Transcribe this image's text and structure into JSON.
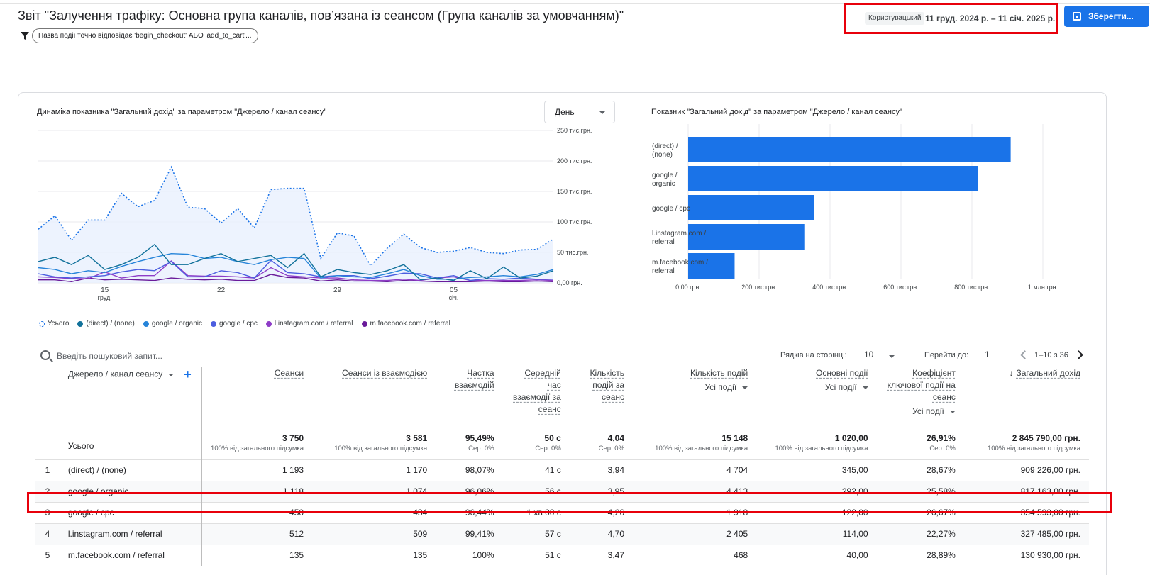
{
  "header": {
    "title": "Звіт \"Залучення трафіку: Основна група каналів, пов’язана із сеансом (Група каналів за умовчанням)\"",
    "filter_chip": "Назва події точно відповідає 'begin_checkout' АБО 'add_to_cart'...",
    "date_type": "Користувацький",
    "date_range": "11 груд. 2024 р. – 11 січ. 2025 р.",
    "save_label": "Зберегти..."
  },
  "line_chart": {
    "title": "Динаміка показника \"Загальний дохід\" за параметром \"Джерело / канал сеансу\"",
    "granularity": "День",
    "y_ticks": [
      "250 тис.грн.",
      "200 тис.грн.",
      "150 тис.грн.",
      "100 тис.грн.",
      "50 тис.грн.",
      "0,00 грн."
    ],
    "x_ticks": [
      {
        "day": "15",
        "month": "груд."
      },
      {
        "day": "22",
        "month": ""
      },
      {
        "day": "29",
        "month": ""
      },
      {
        "day": "05",
        "month": "січ."
      }
    ],
    "legend": [
      "Усього",
      "(direct) / (none)",
      "google / organic",
      "google / cpc",
      "l.instagram.com / referral",
      "m.facebook.com / referral"
    ],
    "colors": [
      "#1a73e8",
      "#12729b",
      "#2684d9",
      "#4c5ee0",
      "#8e3cc7",
      "#6a1b9a"
    ]
  },
  "bar_chart": {
    "title": "Показник \"Загальний дохід\" за параметром \"Джерело / канал сеансу\"",
    "x_ticks": [
      "0,00 грн.",
      "200 тис.грн.",
      "400 тис.грн.",
      "600 тис.грн.",
      "800 тис.грн.",
      "1 млн грн."
    ],
    "bar_color": "#1a73e8"
  },
  "chart_data": [
    {
      "type": "line",
      "title": "Динаміка показника \"Загальний дохід\" за параметром \"Джерело / канал сеансу\"",
      "x": [
        "11.12",
        "12.12",
        "13.12",
        "14.12",
        "15.12",
        "16.12",
        "17.12",
        "18.12",
        "19.12",
        "20.12",
        "21.12",
        "22.12",
        "23.12",
        "24.12",
        "25.12",
        "26.12",
        "27.12",
        "28.12",
        "29.12",
        "30.12",
        "31.12",
        "01.01",
        "02.01",
        "03.01",
        "04.01",
        "05.01",
        "06.01",
        "07.01",
        "08.01",
        "09.01",
        "10.01",
        "11.01"
      ],
      "ylim": [
        0,
        250000
      ],
      "series": [
        {
          "name": "Усього",
          "values": [
            88000,
            110000,
            70000,
            103000,
            103000,
            147000,
            125000,
            135000,
            190000,
            124000,
            122000,
            98000,
            122000,
            90000,
            153000,
            155000,
            155000,
            40000,
            82000,
            77000,
            28000,
            57000,
            80000,
            58000,
            50000,
            52000,
            58000,
            50000,
            48000,
            54000,
            55000,
            72000
          ]
        },
        {
          "name": "(direct) / (none)",
          "values": [
            35000,
            42000,
            30000,
            45000,
            22000,
            30000,
            42000,
            63000,
            30000,
            30000,
            40000,
            48000,
            35000,
            40000,
            45000,
            25000,
            48000,
            10000,
            22000,
            17000,
            14000,
            20000,
            30000,
            5000,
            8000,
            4000,
            20000,
            7000,
            26000,
            8000,
            11000,
            20000
          ]
        },
        {
          "name": "google / organic",
          "values": [
            25000,
            22000,
            15000,
            20000,
            17000,
            27000,
            35000,
            42000,
            48000,
            47000,
            40000,
            42000,
            35000,
            30000,
            38000,
            42000,
            40000,
            8000,
            12000,
            10000,
            9000,
            15000,
            22000,
            12000,
            6000,
            6000,
            9000,
            10000,
            12000,
            10000,
            14000,
            22000
          ]
        },
        {
          "name": "google / cpc",
          "values": [
            15000,
            10000,
            8000,
            10000,
            12000,
            18000,
            22000,
            20000,
            35000,
            10000,
            10000,
            20000,
            17000,
            8000,
            37000,
            17000,
            15000,
            10000,
            12000,
            12000,
            7000,
            11000,
            16000,
            15000,
            8000,
            12000,
            4000,
            7000,
            6000,
            8000,
            6000,
            6000
          ]
        },
        {
          "name": "l.instagram.com / referral",
          "values": [
            10000,
            9000,
            7000,
            7000,
            18000,
            8000,
            12000,
            12000,
            36000,
            12000,
            11000,
            11000,
            10000,
            8000,
            25000,
            12000,
            10000,
            8000,
            8000,
            5000,
            4000,
            4000,
            6000,
            4000,
            8000,
            10000,
            4000,
            4000,
            4000,
            4000,
            5000,
            4000
          ]
        },
        {
          "name": "m.facebook.com / referral",
          "values": [
            5000,
            5000,
            2000,
            8000,
            5000,
            6000,
            5000,
            4000,
            8000,
            6000,
            5000,
            6000,
            4000,
            4000,
            14000,
            9000,
            8000,
            3000,
            5000,
            3000,
            3000,
            2000,
            4000,
            3000,
            2000,
            2000,
            2000,
            3000,
            2000,
            2000,
            3000,
            2000
          ]
        }
      ]
    },
    {
      "type": "bar",
      "title": "Показник \"Загальний дохід\" за параметром \"Джерело / канал сеансу\"",
      "categories": [
        "(direct) / (none)",
        "google / organic",
        "google / cpc",
        "l.instagram.com / referral",
        "m.facebook.com / referral"
      ],
      "values": [
        909226,
        817163,
        354593,
        327485,
        130930
      ],
      "xlim": [
        0,
        1000000
      ]
    }
  ],
  "table": {
    "search_placeholder": "Введіть пошуковий запит...",
    "rows_per_page_label": "Рядків на сторінці:",
    "rows_per_page": "10",
    "goto_label": "Перейти до:",
    "goto_value": "1",
    "page_info": "1–10 з 36",
    "dimension_header": "Джерело / канал сеансу",
    "columns": [
      {
        "label": "Сеанси",
        "sub": ""
      },
      {
        "label": "Сеанси із взаємодією",
        "sub": ""
      },
      {
        "label": "Частка взаємодій",
        "sub": ""
      },
      {
        "label": "Середній час взаємодії за сеанс",
        "sub": ""
      },
      {
        "label": "Кількість подій за сеанс",
        "sub": ""
      },
      {
        "label": "Кількість подій",
        "sub": "Усі події"
      },
      {
        "label": "Основні події",
        "sub": "Усі події"
      },
      {
        "label": "Коефіцієнт ключової події на сеанс",
        "sub": "Усі події"
      },
      {
        "label": "Загальний дохід",
        "sub": "",
        "sorted": "↓"
      }
    ],
    "totals": {
      "label": "Усього",
      "values": [
        "3 750",
        "3 581",
        "95,49%",
        "50 с",
        "4,04",
        "15 148",
        "1 020,00",
        "26,91%",
        "2 845 790,00 грн."
      ],
      "subs": [
        "100% від загального підсумка",
        "100% від загального підсумка",
        "Сер. 0%",
        "Сер. 0%",
        "Сер. 0%",
        "100% від загального підсумка",
        "100% від загального підсумка",
        "Сер. 0%",
        "100% від загального підсумка"
      ]
    },
    "rows": [
      {
        "index": "1",
        "dimension": "(direct) / (none)",
        "values": [
          "1 193",
          "1 170",
          "98,07%",
          "41 с",
          "3,94",
          "4 704",
          "345,00",
          "28,67%",
          "909 226,00 грн."
        ]
      },
      {
        "index": "2",
        "dimension": "google / organic",
        "values": [
          "1 118",
          "1 074",
          "96,06%",
          "56 с",
          "3,95",
          "4 413",
          "292,00",
          "25,58%",
          "817 163,00 грн."
        ]
      },
      {
        "index": "3",
        "dimension": "google / cpc",
        "values": [
          "450",
          "434",
          "96,44%",
          "1 хв 00 с",
          "4,26",
          "1 918",
          "122,00",
          "26,67%",
          "354 593,00 грн."
        ]
      },
      {
        "index": "4",
        "dimension": "l.instagram.com / referral",
        "values": [
          "512",
          "509",
          "99,41%",
          "57 с",
          "4,70",
          "2 405",
          "114,00",
          "22,27%",
          "327 485,00 грн."
        ]
      },
      {
        "index": "5",
        "dimension": "m.facebook.com / referral",
        "values": [
          "135",
          "135",
          "100%",
          "51 с",
          "3,47",
          "468",
          "40,00",
          "28,89%",
          "130 930,00 грн."
        ]
      }
    ]
  }
}
